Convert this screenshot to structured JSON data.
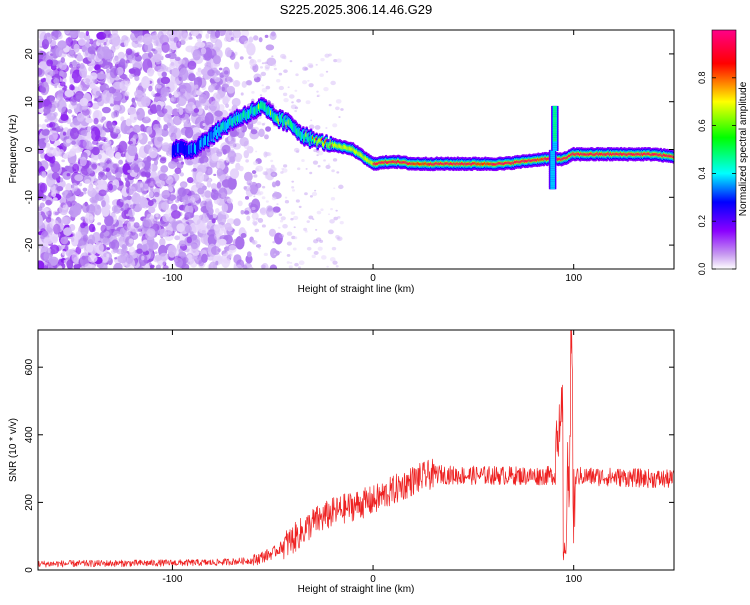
{
  "title": "S225.2025.306.14.46.G29",
  "colors": {
    "snr_line": "#ee2222",
    "axis": "#000000",
    "noise": "#8a2be2"
  },
  "chart_data": [
    {
      "type": "heatmap",
      "name": "spectrogram",
      "xlabel": "Height of straight line (km)",
      "ylabel": "Frequency (Hz)",
      "xlim": [
        -167,
        150
      ],
      "ylim": [
        -25,
        25
      ],
      "xticks": [
        -100,
        0,
        100
      ],
      "yticks": [
        -20,
        -10,
        0,
        10,
        20
      ],
      "colorbar": {
        "label": "Normalized spectral amplitude",
        "range": [
          0,
          1
        ],
        "ticks": [
          "0.0",
          "0.2",
          "0.4",
          "0.6",
          "0.8"
        ],
        "colormap": [
          "#ffffff",
          "#8a00ff",
          "#0000ff",
          "#00ffff",
          "#00ff00",
          "#ffff00",
          "#ff0000",
          "#ff0088"
        ]
      },
      "ridge": [
        [
          -100,
          0
        ],
        [
          -90,
          0
        ],
        [
          -80,
          3
        ],
        [
          -70,
          6
        ],
        [
          -60,
          8
        ],
        [
          -55,
          9
        ],
        [
          -50,
          7
        ],
        [
          -45,
          6
        ],
        [
          -40,
          5
        ],
        [
          -35,
          3
        ],
        [
          -30,
          2
        ],
        [
          -20,
          1
        ],
        [
          -10,
          0
        ],
        [
          0,
          -3
        ],
        [
          10,
          -2.5
        ],
        [
          20,
          -3
        ],
        [
          30,
          -3
        ],
        [
          50,
          -3
        ],
        [
          65,
          -3
        ],
        [
          75,
          -2.5
        ],
        [
          85,
          -2
        ],
        [
          90,
          -2
        ],
        [
          95,
          -2
        ],
        [
          100,
          -1
        ],
        [
          110,
          -1
        ],
        [
          120,
          -1
        ],
        [
          130,
          -1
        ],
        [
          140,
          -1
        ],
        [
          150,
          -1.5
        ]
      ],
      "spike": {
        "x": 90,
        "from": -8,
        "to": 9
      }
    },
    {
      "type": "line",
      "name": "snr",
      "xlabel": "Height of straight line (km)",
      "ylabel": "SNR (10 * v/v)",
      "xlim": [
        -167,
        150
      ],
      "ylim": [
        0,
        710
      ],
      "xticks": [
        -100,
        0,
        100
      ],
      "yticks": [
        0,
        200,
        400,
        600
      ],
      "trend": [
        [
          -167,
          18
        ],
        [
          -120,
          20
        ],
        [
          -80,
          22
        ],
        [
          -60,
          28
        ],
        [
          -50,
          50
        ],
        [
          -40,
          90
        ],
        [
          -30,
          140
        ],
        [
          -20,
          170
        ],
        [
          -10,
          190
        ],
        [
          0,
          205
        ],
        [
          10,
          235
        ],
        [
          20,
          265
        ],
        [
          30,
          285
        ],
        [
          40,
          280
        ],
        [
          60,
          280
        ],
        [
          80,
          278
        ],
        [
          90,
          280
        ],
        [
          100,
          278
        ],
        [
          120,
          275
        ],
        [
          150,
          268
        ]
      ],
      "peaks": [
        {
          "x": 94,
          "y": 540
        },
        {
          "x": 95,
          "y": 30
        },
        {
          "x": 99,
          "y": 710
        },
        {
          "x": 100,
          "y": 80
        }
      ]
    }
  ]
}
